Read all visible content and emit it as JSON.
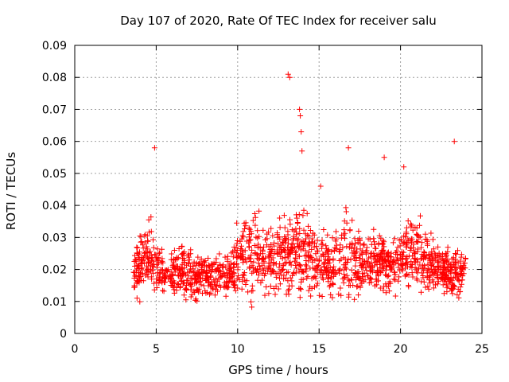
{
  "chart_data": {
    "type": "scatter",
    "title": "Day 107 of 2020, Rate Of TEC Index for receiver salu",
    "xlabel": "GPS time / hours",
    "ylabel": "ROTI / TECUs",
    "xlim": [
      0,
      25
    ],
    "ylim": [
      0,
      0.09
    ],
    "xticks": [
      "0",
      "5",
      "10",
      "15",
      "20",
      "25"
    ],
    "yticks": [
      "0",
      "0.01",
      "0.02",
      "0.03",
      "0.04",
      "0.05",
      "0.06",
      "0.07",
      "0.08",
      "0.09"
    ],
    "grid": true,
    "marker": "+",
    "color": "#ff0000",
    "data_range": {
      "x": [
        3.6,
        24.0
      ],
      "y": [
        0.007,
        0.081
      ]
    },
    "outliers": [
      {
        "x": 4.9,
        "y": 0.058
      },
      {
        "x": 13.1,
        "y": 0.081
      },
      {
        "x": 13.2,
        "y": 0.08
      },
      {
        "x": 13.8,
        "y": 0.07
      },
      {
        "x": 13.85,
        "y": 0.068
      },
      {
        "x": 13.9,
        "y": 0.063
      },
      {
        "x": 13.95,
        "y": 0.057
      },
      {
        "x": 16.8,
        "y": 0.058
      },
      {
        "x": 19.0,
        "y": 0.055
      },
      {
        "x": 20.2,
        "y": 0.052
      },
      {
        "x": 23.3,
        "y": 0.06
      },
      {
        "x": 15.1,
        "y": 0.046
      }
    ],
    "cluster_profile": [
      {
        "x": 3.8,
        "center": 0.02,
        "spread": 0.012
      },
      {
        "x": 4.6,
        "center": 0.024,
        "spread": 0.016
      },
      {
        "x": 5.5,
        "center": 0.018,
        "spread": 0.008
      },
      {
        "x": 6.5,
        "center": 0.02,
        "spread": 0.012
      },
      {
        "x": 7.5,
        "center": 0.017,
        "spread": 0.009
      },
      {
        "x": 8.5,
        "center": 0.018,
        "spread": 0.008
      },
      {
        "x": 9.5,
        "center": 0.019,
        "spread": 0.009
      },
      {
        "x": 10.5,
        "center": 0.026,
        "spread": 0.02
      },
      {
        "x": 11.5,
        "center": 0.024,
        "spread": 0.016
      },
      {
        "x": 12.5,
        "center": 0.024,
        "spread": 0.016
      },
      {
        "x": 13.5,
        "center": 0.026,
        "spread": 0.018
      },
      {
        "x": 14.5,
        "center": 0.025,
        "spread": 0.017
      },
      {
        "x": 15.5,
        "center": 0.021,
        "spread": 0.012
      },
      {
        "x": 16.5,
        "center": 0.024,
        "spread": 0.02
      },
      {
        "x": 17.5,
        "center": 0.022,
        "spread": 0.013
      },
      {
        "x": 18.5,
        "center": 0.023,
        "spread": 0.014
      },
      {
        "x": 19.5,
        "center": 0.021,
        "spread": 0.012
      },
      {
        "x": 20.5,
        "center": 0.027,
        "spread": 0.016
      },
      {
        "x": 21.5,
        "center": 0.023,
        "spread": 0.013
      },
      {
        "x": 22.5,
        "center": 0.02,
        "spread": 0.01
      },
      {
        "x": 23.5,
        "center": 0.018,
        "spread": 0.01
      },
      {
        "x": 24.0,
        "center": 0.02,
        "spread": 0.01
      }
    ]
  }
}
